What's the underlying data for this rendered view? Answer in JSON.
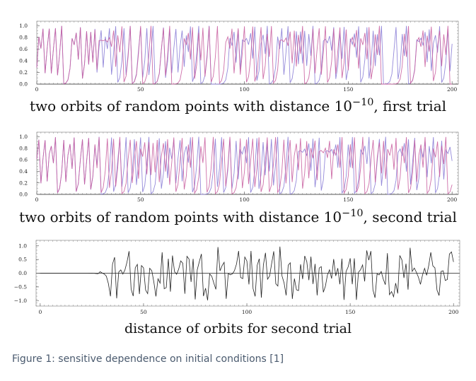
{
  "captions": {
    "panel1_prefix": "two orbits of random points with distance 10",
    "panel1_exp": "−10",
    "panel1_suffix": ", first trial",
    "panel2_prefix": "two orbits of random points with distance 10",
    "panel2_exp": "−10",
    "panel2_suffix": ", second trial",
    "panel3": "distance of orbits for second trial"
  },
  "figure_caption": "Figure 1: sensitive dependence on initial conditions [1]",
  "colors": {
    "orbit_a": "#8a7dd6",
    "orbit_b": "#c95fa0",
    "distance": "#222222",
    "axis": "#555555"
  },
  "chart_data": [
    {
      "type": "line",
      "title": "",
      "x": {
        "start": 0,
        "end": 200,
        "step": 1
      },
      "xlim": [
        0,
        203
      ],
      "ylim": [
        0,
        1.08
      ],
      "xticks": [
        "0",
        "50",
        "100",
        "150",
        "200"
      ],
      "xtick_values": [
        0,
        50,
        100,
        150,
        200
      ],
      "yticks": [
        "0.0",
        "0.2",
        "0.4",
        "0.6",
        "0.8",
        "1.0"
      ],
      "ytick_values": [
        0,
        0.2,
        0.4,
        0.6,
        0.8,
        1.0
      ],
      "generator": {
        "map": "logistic",
        "r": 4,
        "x0": 0.2831,
        "delta": 1e-10
      },
      "series": [
        {
          "color": "#8a7dd6"
        },
        {
          "color": "#c95fa0"
        }
      ]
    },
    {
      "type": "line",
      "title": "",
      "x": {
        "start": 0,
        "end": 200,
        "step": 1
      },
      "xlim": [
        0,
        203
      ],
      "ylim": [
        0,
        1.08
      ],
      "xticks": [
        "0",
        "50",
        "100",
        "150",
        "200"
      ],
      "xtick_values": [
        0,
        50,
        100,
        150,
        200
      ],
      "yticks": [
        "0.0",
        "0.2",
        "0.4",
        "0.6",
        "0.8",
        "1.0"
      ],
      "ytick_values": [
        0,
        0.2,
        0.4,
        0.6,
        0.8,
        1.0
      ],
      "generator": {
        "map": "logistic",
        "r": 4,
        "x0": 0.6127,
        "delta": 1e-10
      },
      "series": [
        {
          "color": "#8a7dd6"
        },
        {
          "color": "#c95fa0"
        }
      ]
    },
    {
      "type": "line",
      "title": "",
      "x": {
        "start": 0,
        "end": 200,
        "step": 1
      },
      "xlim": [
        -2,
        203
      ],
      "ylim": [
        -1.2,
        1.2
      ],
      "xticks": [
        "0",
        "50",
        "100",
        "150",
        "200"
      ],
      "xtick_values": [
        0,
        50,
        100,
        150,
        200
      ],
      "yticks": [
        "1.0",
        "0.5",
        "0.0",
        "−0.5",
        "−1.0"
      ],
      "ytick_values": [
        1.0,
        0.5,
        0.0,
        -0.5,
        -1.0
      ],
      "generator": {
        "map": "logistic-difference",
        "source_panel": 1
      },
      "series": [
        {
          "color": "#222222"
        }
      ]
    }
  ]
}
